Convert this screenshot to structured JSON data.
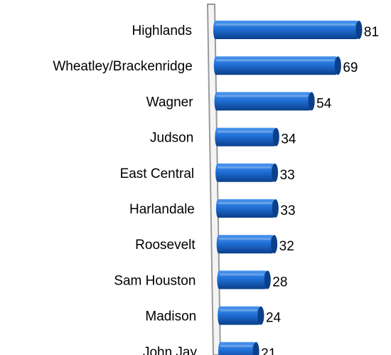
{
  "chart_data": {
    "type": "bar",
    "orientation": "horizontal",
    "style": "3d-cylinder",
    "title": "",
    "xlabel": "",
    "ylabel": "",
    "categories": [
      "Highlands",
      "Wheatley/Brackenridge",
      "Wagner",
      "Judson",
      "East Central",
      "Harlandale",
      "Roosevelt",
      "Sam Houston",
      "Madison",
      "John Jay"
    ],
    "values": [
      81,
      69,
      54,
      34,
      33,
      33,
      32,
      28,
      24,
      21
    ],
    "xlim": [
      0,
      85
    ],
    "grid": false,
    "legend": "none",
    "colors": {
      "bar_fill": "#1f6fd6",
      "bar_dark": "#0b3f8a",
      "bar_light": "#4a95ee",
      "axis_wall": "#9a9a9a",
      "text": "#000000"
    }
  }
}
